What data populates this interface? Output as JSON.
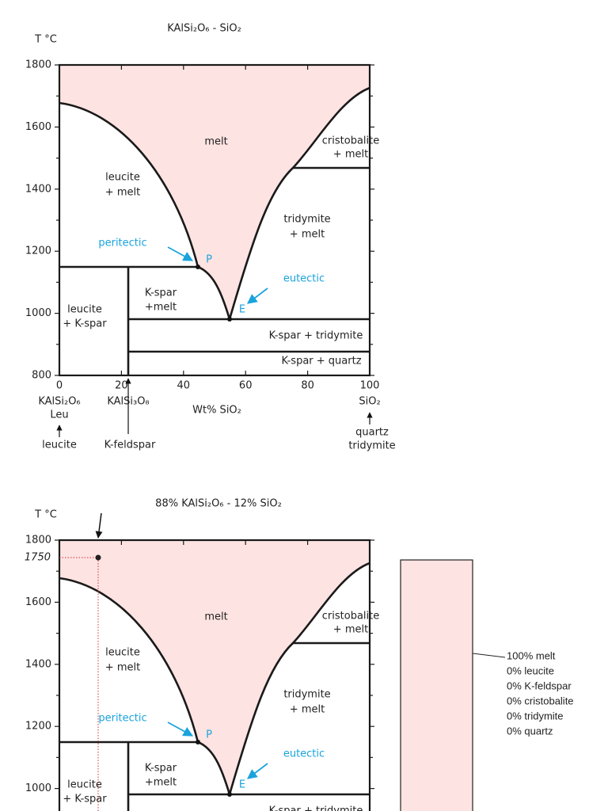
{
  "diagrams": [
    {
      "title": "KAlSi₂O₆ - SiO₂",
      "y_unit": "T °C",
      "y_ticks": [
        "1800",
        "1600",
        "1400",
        "1200",
        "1000",
        "800"
      ],
      "x_ticks": [
        "0",
        "20",
        "40",
        "60",
        "80",
        "100"
      ],
      "regions": [
        [
          "melt"
        ],
        [
          "leucite",
          "+ melt"
        ],
        [
          "cristobalite",
          "+ melt"
        ],
        [
          "tridymite",
          "+ melt"
        ],
        [
          "K-spar",
          "+melt"
        ],
        [
          "leucite",
          "+ K-spar"
        ],
        [
          "K-spar + tridymite"
        ],
        [
          "K-spar + quartz"
        ]
      ],
      "peritectic": "peritectic",
      "p": "P",
      "eutectic": "eutectic",
      "e": "E",
      "x_axis_title": "Wt% SiO₂",
      "left_end": [
        "KAlSi₂O₆",
        "Leu",
        "leucite"
      ],
      "mid_end": [
        "KAlSi₃O₈",
        "K-feldspar"
      ],
      "right_end": [
        "SiO₂",
        "quartz",
        "tridymite"
      ]
    },
    {
      "title": "88% KAlSi₂O₆ - 12% SiO₂",
      "y_unit": "T °C",
      "y_ticks": [
        "1800",
        "1600",
        "1400",
        "1200",
        "1000"
      ],
      "temperature": "1750",
      "regions": [
        [
          "melt"
        ],
        [
          "leucite",
          "+ melt"
        ],
        [
          "cristobalite",
          "+ melt"
        ],
        [
          "tridymite",
          "+ melt"
        ],
        [
          "K-spar",
          "+melt"
        ],
        [
          "leucite",
          "+ K-spar"
        ],
        [
          "K-spar + tridymite"
        ]
      ],
      "peritectic": "peritectic",
      "p": "P",
      "eutectic": "eutectic",
      "e": "E",
      "phases": [
        "100% melt",
        "0% leucite",
        "0% K-feldspar",
        "0% cristobalite",
        "0% tridymite",
        "0% quartz"
      ]
    }
  ]
}
